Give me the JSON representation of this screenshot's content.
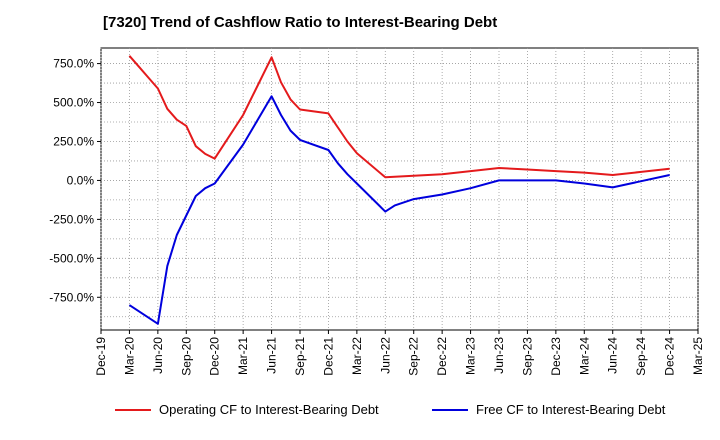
{
  "chart_data": {
    "type": "line",
    "title": "[7320]  Trend of Cashflow Ratio to Interest-Bearing Debt",
    "xlabel": "",
    "ylabel": "",
    "ylim": [
      -960,
      850
    ],
    "x_start": "Dec-19",
    "x_end": "Mar-25",
    "x_ticks": [
      "Dec-19",
      "Mar-20",
      "Jun-20",
      "Sep-20",
      "Dec-20",
      "Mar-21",
      "Jun-21",
      "Sep-21",
      "Dec-21",
      "Mar-22",
      "Jun-22",
      "Sep-22",
      "Dec-22",
      "Mar-23",
      "Jun-23",
      "Sep-23",
      "Dec-23",
      "Mar-24",
      "Jun-24",
      "Sep-24",
      "Dec-24",
      "Mar-25"
    ],
    "y_ticks": [
      750,
      500,
      250,
      0,
      -250,
      -500,
      -750
    ],
    "y_tick_labels": [
      "750.0%",
      "500.0%",
      "250.0%",
      "0.0%",
      "-250.0%",
      "-500.0%",
      "-750.0%"
    ],
    "grid": true,
    "legend_position": "bottom",
    "series": [
      {
        "name": "Operating CF to Interest-Bearing Debt",
        "color": "#e41a1c",
        "points": [
          [
            "Mar-20",
            800
          ],
          [
            "Apr-20",
            730
          ],
          [
            "May-20",
            660
          ],
          [
            "Jun-20",
            590
          ],
          [
            "Jul-20",
            460
          ],
          [
            "Aug-20",
            390
          ],
          [
            "Sep-20",
            350
          ],
          [
            "Oct-20",
            220
          ],
          [
            "Nov-20",
            170
          ],
          [
            "Dec-20",
            140
          ],
          [
            "Mar-21",
            420
          ],
          [
            "Jun-21",
            790
          ],
          [
            "Jul-21",
            630
          ],
          [
            "Aug-21",
            520
          ],
          [
            "Sep-21",
            455
          ],
          [
            "Dec-21",
            430
          ],
          [
            "Jan-22",
            340
          ],
          [
            "Feb-22",
            250
          ],
          [
            "Mar-22",
            175
          ],
          [
            "Jun-22",
            20
          ],
          [
            "Sep-22",
            30
          ],
          [
            "Dec-22",
            40
          ],
          [
            "Mar-23",
            60
          ],
          [
            "Jun-23",
            80
          ],
          [
            "Sep-23",
            70
          ],
          [
            "Dec-23",
            60
          ],
          [
            "Mar-24",
            50
          ],
          [
            "Jun-24",
            35
          ],
          [
            "Sep-24",
            55
          ],
          [
            "Dec-24",
            75
          ]
        ]
      },
      {
        "name": "Free CF to Interest-Bearing Debt",
        "color": "#0000dd",
        "points": [
          [
            "Mar-20",
            -800
          ],
          [
            "Jun-20",
            -920
          ],
          [
            "Jul-20",
            -550
          ],
          [
            "Aug-20",
            -350
          ],
          [
            "Oct-20",
            -100
          ],
          [
            "Nov-20",
            -50
          ],
          [
            "Dec-20",
            -20
          ],
          [
            "Mar-21",
            230
          ],
          [
            "Jun-21",
            540
          ],
          [
            "Jul-21",
            420
          ],
          [
            "Aug-21",
            320
          ],
          [
            "Sep-21",
            260
          ],
          [
            "Dec-21",
            195
          ],
          [
            "Jan-22",
            110
          ],
          [
            "Feb-22",
            40
          ],
          [
            "Mar-22",
            -20
          ],
          [
            "Jun-22",
            -200
          ],
          [
            "Jul-22",
            -160
          ],
          [
            "Sep-22",
            -120
          ],
          [
            "Dec-22",
            -90
          ],
          [
            "Mar-23",
            -50
          ],
          [
            "Jun-23",
            0
          ],
          [
            "Sep-23",
            0
          ],
          [
            "Dec-23",
            0
          ],
          [
            "Mar-24",
            -20
          ],
          [
            "Jun-24",
            -45
          ],
          [
            "Sep-24",
            -5
          ],
          [
            "Dec-24",
            35
          ]
        ]
      }
    ]
  }
}
